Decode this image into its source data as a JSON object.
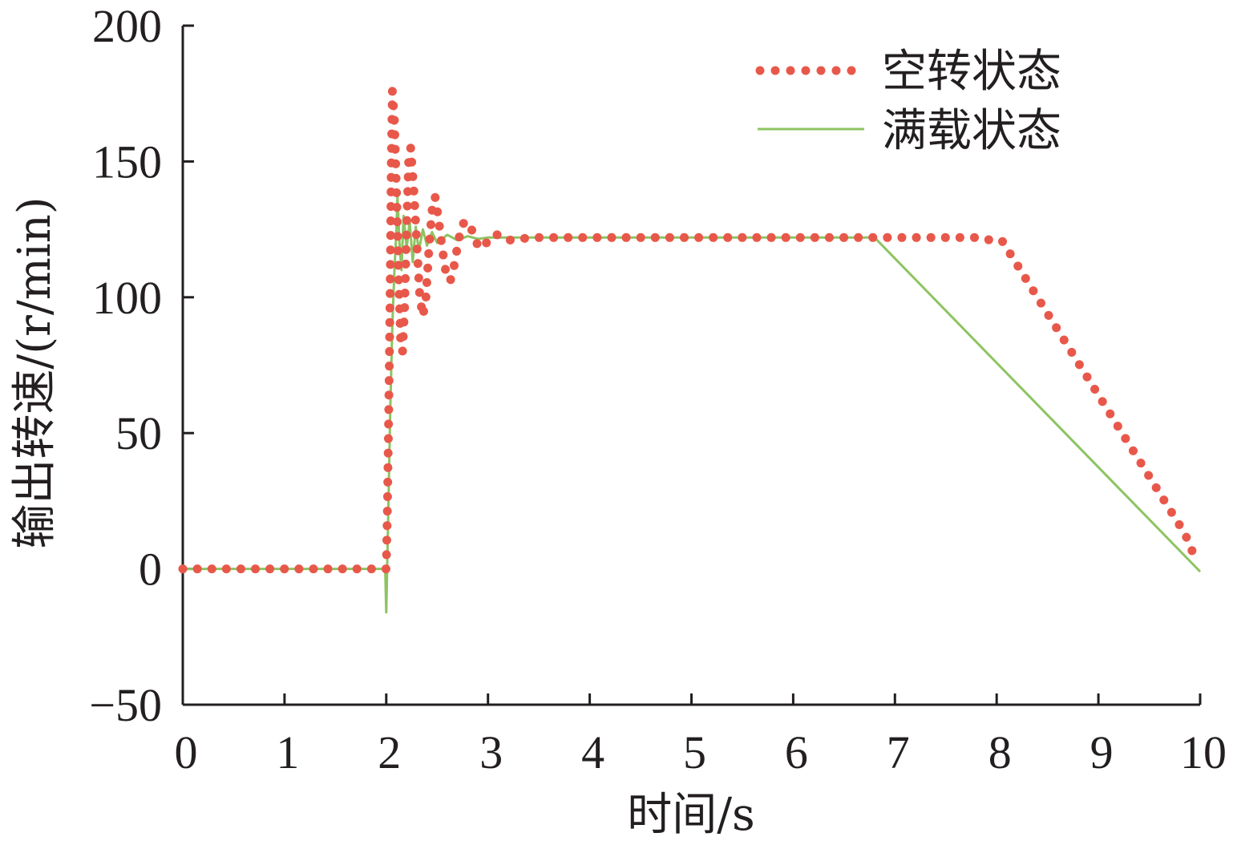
{
  "chart_data": {
    "type": "line",
    "title": "",
    "xlabel": "时间/s",
    "ylabel": "输出转速/(r/min)",
    "xlim": [
      0,
      10
    ],
    "ylim": [
      -50,
      200
    ],
    "x_ticks": [
      0,
      1,
      2,
      3,
      4,
      5,
      6,
      7,
      8,
      9,
      10
    ],
    "y_ticks": [
      -50,
      0,
      50,
      100,
      150,
      200
    ],
    "x_tick_labels": [
      "0",
      "1",
      "2",
      "3",
      "4",
      "5",
      "6",
      "7",
      "8",
      "9",
      "10"
    ],
    "y_tick_labels": [
      "−50",
      "0",
      "50",
      "100",
      "150",
      "200"
    ],
    "grid": false,
    "legend_position": "top-right",
    "series": [
      {
        "name": "空转状态",
        "style": "dotted",
        "color": "#e8584a",
        "points": [
          [
            0,
            0
          ],
          [
            0.15,
            0
          ],
          [
            0.3,
            0
          ],
          [
            0.45,
            0
          ],
          [
            0.6,
            0
          ],
          [
            0.75,
            0
          ],
          [
            0.9,
            0
          ],
          [
            1.05,
            0
          ],
          [
            1.2,
            0
          ],
          [
            1.35,
            0
          ],
          [
            1.5,
            0
          ],
          [
            1.65,
            0
          ],
          [
            1.8,
            0
          ],
          [
            1.95,
            0
          ],
          [
            2.0,
            0
          ],
          [
            2.01,
            20
          ],
          [
            2.02,
            45
          ],
          [
            2.03,
            75
          ],
          [
            2.04,
            110
          ],
          [
            2.05,
            150
          ],
          [
            2.06,
            176
          ],
          [
            2.08,
            165
          ],
          [
            2.1,
            140
          ],
          [
            2.12,
            110
          ],
          [
            2.14,
            85
          ],
          [
            2.16,
            80
          ],
          [
            2.18,
            95
          ],
          [
            2.2,
            125
          ],
          [
            2.22,
            150
          ],
          [
            2.24,
            155
          ],
          [
            2.27,
            140
          ],
          [
            2.3,
            120
          ],
          [
            2.33,
            100
          ],
          [
            2.36,
            93
          ],
          [
            2.39,
            100
          ],
          [
            2.42,
            118
          ],
          [
            2.45,
            132
          ],
          [
            2.48,
            137
          ],
          [
            2.51,
            130
          ],
          [
            2.55,
            118
          ],
          [
            2.59,
            108
          ],
          [
            2.63,
            106
          ],
          [
            2.67,
            112
          ],
          [
            2.71,
            121
          ],
          [
            2.75,
            127
          ],
          [
            2.8,
            128
          ],
          [
            2.85,
            124
          ],
          [
            2.9,
            119
          ],
          [
            2.95,
            118
          ],
          [
            3.0,
            121
          ],
          [
            3.05,
            123
          ],
          [
            3.1,
            123
          ],
          [
            3.15,
            122
          ],
          [
            3.2,
            121
          ],
          [
            3.3,
            121.5
          ],
          [
            3.45,
            122
          ],
          [
            3.6,
            122
          ],
          [
            3.75,
            122
          ],
          [
            3.9,
            122
          ],
          [
            4.05,
            122
          ],
          [
            4.2,
            122
          ],
          [
            4.35,
            122
          ],
          [
            4.5,
            122
          ],
          [
            4.65,
            122
          ],
          [
            4.8,
            122
          ],
          [
            4.95,
            122
          ],
          [
            5.1,
            122
          ],
          [
            5.25,
            122
          ],
          [
            5.4,
            122
          ],
          [
            5.55,
            122
          ],
          [
            5.7,
            122
          ],
          [
            5.85,
            122
          ],
          [
            6.0,
            122
          ],
          [
            6.15,
            122
          ],
          [
            6.3,
            122
          ],
          [
            6.45,
            122
          ],
          [
            6.6,
            122
          ],
          [
            6.75,
            122
          ],
          [
            6.9,
            122
          ],
          [
            7.05,
            122
          ],
          [
            7.2,
            122
          ],
          [
            7.35,
            122
          ],
          [
            7.5,
            122
          ],
          [
            7.65,
            122
          ],
          [
            7.8,
            122
          ],
          [
            7.95,
            121
          ],
          [
            8.05,
            121
          ],
          [
            8.2,
            112
          ],
          [
            8.35,
            103
          ],
          [
            8.5,
            94
          ],
          [
            8.65,
            85
          ],
          [
            8.8,
            76
          ],
          [
            8.95,
            67
          ],
          [
            9.1,
            58
          ],
          [
            9.25,
            49
          ],
          [
            9.4,
            40
          ],
          [
            9.55,
            31
          ],
          [
            9.7,
            22
          ],
          [
            9.85,
            13
          ],
          [
            9.95,
            4
          ]
        ]
      },
      {
        "name": "满载状态",
        "style": "solid",
        "color": "#8dc462",
        "points": [
          [
            0,
            0
          ],
          [
            1.99,
            0
          ],
          [
            2.0,
            -16
          ],
          [
            2.02,
            20
          ],
          [
            2.04,
            60
          ],
          [
            2.06,
            90
          ],
          [
            2.08,
            110
          ],
          [
            2.1,
            125
          ],
          [
            2.11,
            137
          ],
          [
            2.13,
            120
          ],
          [
            2.15,
            110
          ],
          [
            2.17,
            130
          ],
          [
            2.2,
            118
          ],
          [
            2.23,
            128
          ],
          [
            2.26,
            113
          ],
          [
            2.29,
            126
          ],
          [
            2.32,
            117
          ],
          [
            2.36,
            125
          ],
          [
            2.4,
            119
          ],
          [
            2.45,
            124
          ],
          [
            2.5,
            120
          ],
          [
            2.6,
            123
          ],
          [
            2.7,
            121
          ],
          [
            2.8,
            122.5
          ],
          [
            2.9,
            121.5
          ],
          [
            3.0,
            122
          ],
          [
            6.8,
            122
          ],
          [
            10.0,
            -1
          ]
        ]
      }
    ]
  }
}
